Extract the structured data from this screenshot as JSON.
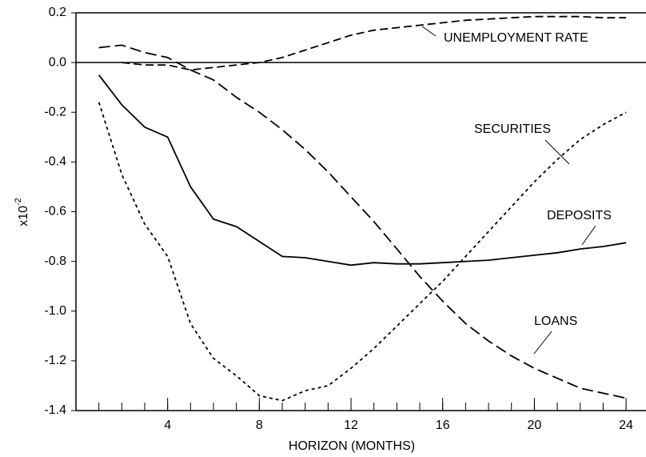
{
  "chart_data": {
    "type": "line",
    "x_label": "HORIZON (MONTHS)",
    "y_label": "x10",
    "y_label_exponent": "-2",
    "x": [
      1,
      2,
      3,
      4,
      5,
      6,
      7,
      8,
      9,
      10,
      11,
      12,
      13,
      14,
      15,
      16,
      17,
      18,
      19,
      20,
      21,
      22,
      23,
      24
    ],
    "series": [
      {
        "name": "UNEMPLOYMENT RATE",
        "color": "#000000",
        "dash": "10,5",
        "values": [
          null,
          0.0,
          -0.01,
          -0.01,
          -0.03,
          -0.02,
          -0.01,
          0.0,
          0.02,
          0.05,
          0.08,
          0.11,
          0.13,
          0.14,
          0.15,
          0.16,
          0.17,
          0.175,
          0.18,
          0.185,
          0.185,
          0.185,
          0.18,
          0.18
        ]
      },
      {
        "name": "SECURITIES",
        "color": "#000000",
        "dash": "4,4",
        "values": [
          -0.16,
          -0.45,
          -0.65,
          -0.78,
          -1.05,
          -1.19,
          -1.26,
          -1.34,
          -1.36,
          -1.32,
          -1.3,
          -1.23,
          -1.15,
          -1.06,
          -0.97,
          -0.88,
          -0.78,
          -0.68,
          -0.58,
          -0.48,
          -0.39,
          -0.31,
          -0.25,
          -0.2
        ]
      },
      {
        "name": "DEPOSITS",
        "color": "#000000",
        "dash": "none",
        "values": [
          -0.05,
          -0.17,
          -0.26,
          -0.3,
          -0.5,
          -0.63,
          -0.66,
          -0.72,
          -0.78,
          -0.785,
          -0.8,
          -0.815,
          -0.805,
          -0.81,
          -0.81,
          -0.805,
          -0.8,
          -0.795,
          -0.785,
          -0.775,
          -0.765,
          -0.75,
          -0.74,
          -0.725
        ]
      },
      {
        "name": "LOANS",
        "color": "#000000",
        "dash": "14,6",
        "values": [
          0.06,
          0.07,
          0.04,
          0.02,
          -0.03,
          -0.07,
          -0.14,
          -0.2,
          -0.27,
          -0.35,
          -0.44,
          -0.54,
          -0.64,
          -0.75,
          -0.86,
          -0.96,
          -1.05,
          -1.12,
          -1.18,
          -1.23,
          -1.27,
          -1.31,
          -1.33,
          -1.35
        ]
      }
    ],
    "xlim": [
      0,
      24.87
    ],
    "ylim": [
      -1.4,
      0.2
    ],
    "xticks": [
      4,
      8,
      12,
      16,
      20,
      24
    ],
    "x_minor_ticks": [
      1,
      2,
      3,
      4,
      5,
      6,
      7,
      8,
      9,
      10,
      11,
      12,
      13,
      14,
      15,
      16,
      17,
      18,
      19,
      20,
      21,
      22,
      23,
      24
    ],
    "yticks": [
      0.2,
      {
        "value": 0,
        "label": "0.0"
      },
      -0.2,
      -0.4,
      -0.6,
      -0.8,
      {
        "value": -1,
        "label": "-1.0"
      },
      -1.2,
      -1.4
    ]
  }
}
